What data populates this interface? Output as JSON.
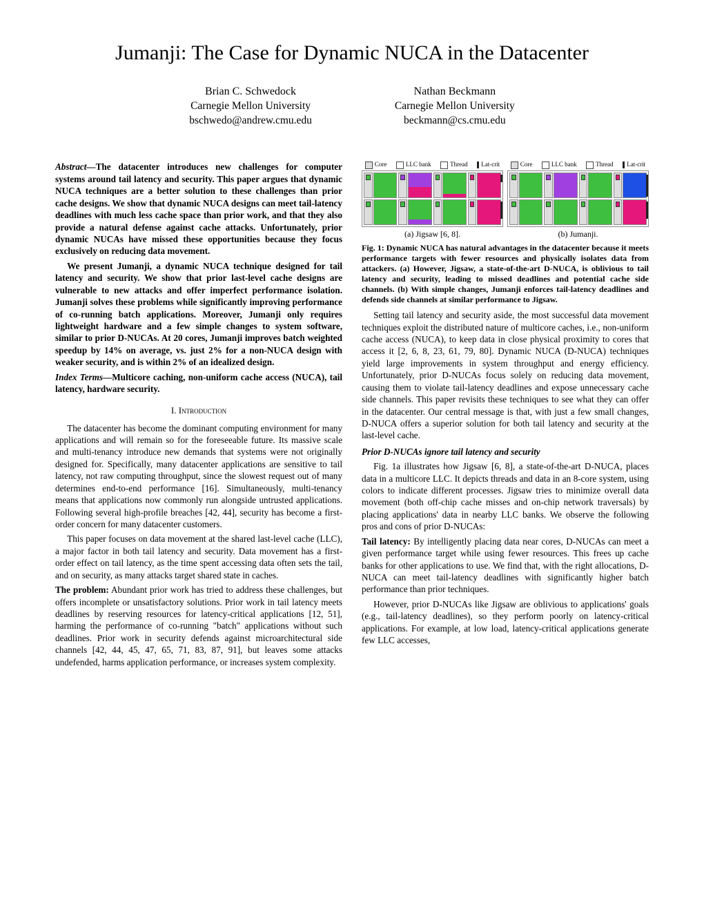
{
  "title": "Jumanji: The Case for Dynamic NUCA in the Datacenter",
  "authors": [
    {
      "name": "Brian C. Schwedock",
      "affiliation": "Carnegie Mellon University",
      "email": "bschwedo@andrew.cmu.edu"
    },
    {
      "name": "Nathan Beckmann",
      "affiliation": "Carnegie Mellon University",
      "email": "beckmann@cs.cmu.edu"
    }
  ],
  "abstract_label": "Abstract—",
  "abstract_p1": "The datacenter introduces new challenges for computer systems around tail latency and security. This paper argues that dynamic NUCA techniques are a better solution to these challenges than prior cache designs. We show that dynamic NUCA designs can meet tail-latency deadlines with much less cache space than prior work, and that they also provide a natural defense against cache attacks. Unfortunately, prior dynamic NUCAs have missed these opportunities because they focus exclusively on reducing data movement.",
  "abstract_p2": "We present Jumanji, a dynamic NUCA technique designed for tail latency and security. We show that prior last-level cache designs are vulnerable to new attacks and offer imperfect performance isolation. Jumanji solves these problems while significantly improving performance of co-running batch applications. Moreover, Jumanji only requires lightweight hardware and a few simple changes to system software, similar to prior D-NUCAs. At 20 cores, Jumanji improves batch weighted speedup by 14% on average, vs. just 2% for a non-NUCA design with weaker security, and is within 2% of an idealized design.",
  "index_label": "Index Terms—",
  "index_terms": "Multicore caching, non-uniform cache access (NUCA), tail latency, hardware security.",
  "section1": "I.  Introduction",
  "intro_p1": "The datacenter has become the dominant computing environment for many applications and will remain so for the foreseeable future. Its massive scale and multi-tenancy introduce new demands that systems were not originally designed for. Specifically, many datacenter applications are sensitive to tail latency, not raw computing throughput, since the slowest request out of many determines end-to-end performance [16]. Simultaneously, multi-tenancy means that applications now commonly run alongside untrusted applications. Following several high-profile breaches [42, 44], security has become a first-order concern for many datacenter customers.",
  "intro_p2": "This paper focuses on data movement at the shared last-level cache (LLC), a major factor in both tail latency and security. Data movement has a first-order effect on tail latency, as the time spent accessing data often sets the tail, and on security, as many attacks target shared state in caches.",
  "problem_label": "The problem:",
  "problem_text": " Abundant prior work has tried to address these challenges, but offers incomplete or unsatisfactory solutions. Prior work in tail latency meets deadlines by reserving resources for latency-critical applications [12, 51], harming the performance of co-running \"batch\" applications without such deadlines. Prior work in security defends against microarchitectural side channels [42, 44, 45, 47, 65, 71, 83, 87, 91], but leaves some attacks undefended, harms application performance, or increases system complexity.",
  "legend": {
    "core": "Core",
    "llc": "LLC bank",
    "thread": "Thread",
    "lat": "Lat-crit"
  },
  "fig1_a_caption": "(a) Jigsaw [6, 8].",
  "fig1_b_caption": "(b) Jumanji.",
  "fig1_caption": "Fig. 1: Dynamic NUCA has natural advantages in the datacenter because it meets performance targets with fewer resources and physically isolates data from attackers. (a) However, Jigsaw, a state-of-the-art D-NUCA, is oblivious to tail latency and security, leading to missed deadlines and potential cache side channels. (b) With simple changes, Jumanji enforces tail-latency deadlines and defends side channels at similar performance to Jigsaw.",
  "col2_p1": "Setting tail latency and security aside, the most successful data movement techniques exploit the distributed nature of multicore caches, i.e., non-uniform cache access (NUCA), to keep data in close physical proximity to cores that access it [2, 6, 8, 23, 61, 79, 80]. Dynamic NUCA (D-NUCA) techniques yield large improvements in system throughput and energy efficiency. Unfortunately, prior D-NUCAs focus solely on reducing data movement, causing them to violate tail-latency deadlines and expose unnecessary cache side channels. This paper revisits these techniques to see what they can offer in the datacenter. Our central message is that, with just a few small changes, D-NUCA offers a superior solution for both tail latency and security at the last-level cache.",
  "subheading1": "Prior D-NUCAs ignore tail latency and security",
  "col2_p2": "Fig. 1a illustrates how Jigsaw [6, 8], a state-of-the-art D-NUCA, places data in a multicore LLC. It depicts threads and data in an 8-core system, using colors to indicate different processes. Jigsaw tries to minimize overall data movement (both off-chip cache misses and on-chip network traversals) by placing applications' data in nearby LLC banks. We observe the following pros and cons of prior D-NUCAs:",
  "tail_label": "Tail latency:",
  "tail_text": " By intelligently placing data near cores, D-NUCAs can meet a given performance target while using fewer resources. This frees up cache banks for other applications to use. We find that, with the right allocations, D-NUCA can meet tail-latency deadlines with significantly higher batch performance than prior techniques.",
  "col2_p3": "However, prior D-NUCAs like Jigsaw are oblivious to applications' goals (e.g., tail-latency deadlines), so they perform poorly on latency-critical applications. For example, at low load, latency-critical applications generate few LLC accesses,",
  "colors": {
    "green": "#3fbf3f",
    "purple": "#a040e0",
    "magenta": "#e6177a",
    "blue": "#1e50e6",
    "grey": "#dddddd",
    "black": "#222222"
  },
  "fig_jigsaw_banks": [
    [
      {
        "c": "green",
        "f": 1
      }
    ],
    [
      {
        "c": "purple",
        "f": 0.55
      },
      {
        "c": "magenta",
        "f": 0.45
      }
    ],
    [
      {
        "c": "green",
        "f": 0.85
      },
      {
        "c": "magenta",
        "f": 0.15
      }
    ],
    [
      {
        "c": "magenta",
        "f": 1
      }
    ],
    [
      {
        "c": "green",
        "f": 1
      }
    ],
    [
      {
        "c": "green",
        "f": 0.8
      },
      {
        "c": "purple",
        "f": 0.2
      }
    ],
    [
      {
        "c": "green",
        "f": 1
      }
    ],
    [
      {
        "c": "magenta",
        "f": 1
      }
    ]
  ],
  "fig_jigsaw_threads": [
    "green",
    "purple",
    "green",
    "magenta",
    "green",
    "green",
    "green",
    "magenta"
  ],
  "fig_jumanji_banks": [
    [
      {
        "c": "green",
        "f": 1
      }
    ],
    [
      {
        "c": "purple",
        "f": 1
      }
    ],
    [
      {
        "c": "green",
        "f": 1
      }
    ],
    [
      {
        "c": "blue",
        "f": 1
      }
    ],
    [
      {
        "c": "green",
        "f": 1
      }
    ],
    [
      {
        "c": "green",
        "f": 1
      }
    ],
    [
      {
        "c": "green",
        "f": 1
      }
    ],
    [
      {
        "c": "magenta",
        "f": 1
      }
    ]
  ],
  "fig_jumanji_threads": [
    "green",
    "purple",
    "green",
    "magenta",
    "green",
    "green",
    "green",
    "magenta"
  ]
}
